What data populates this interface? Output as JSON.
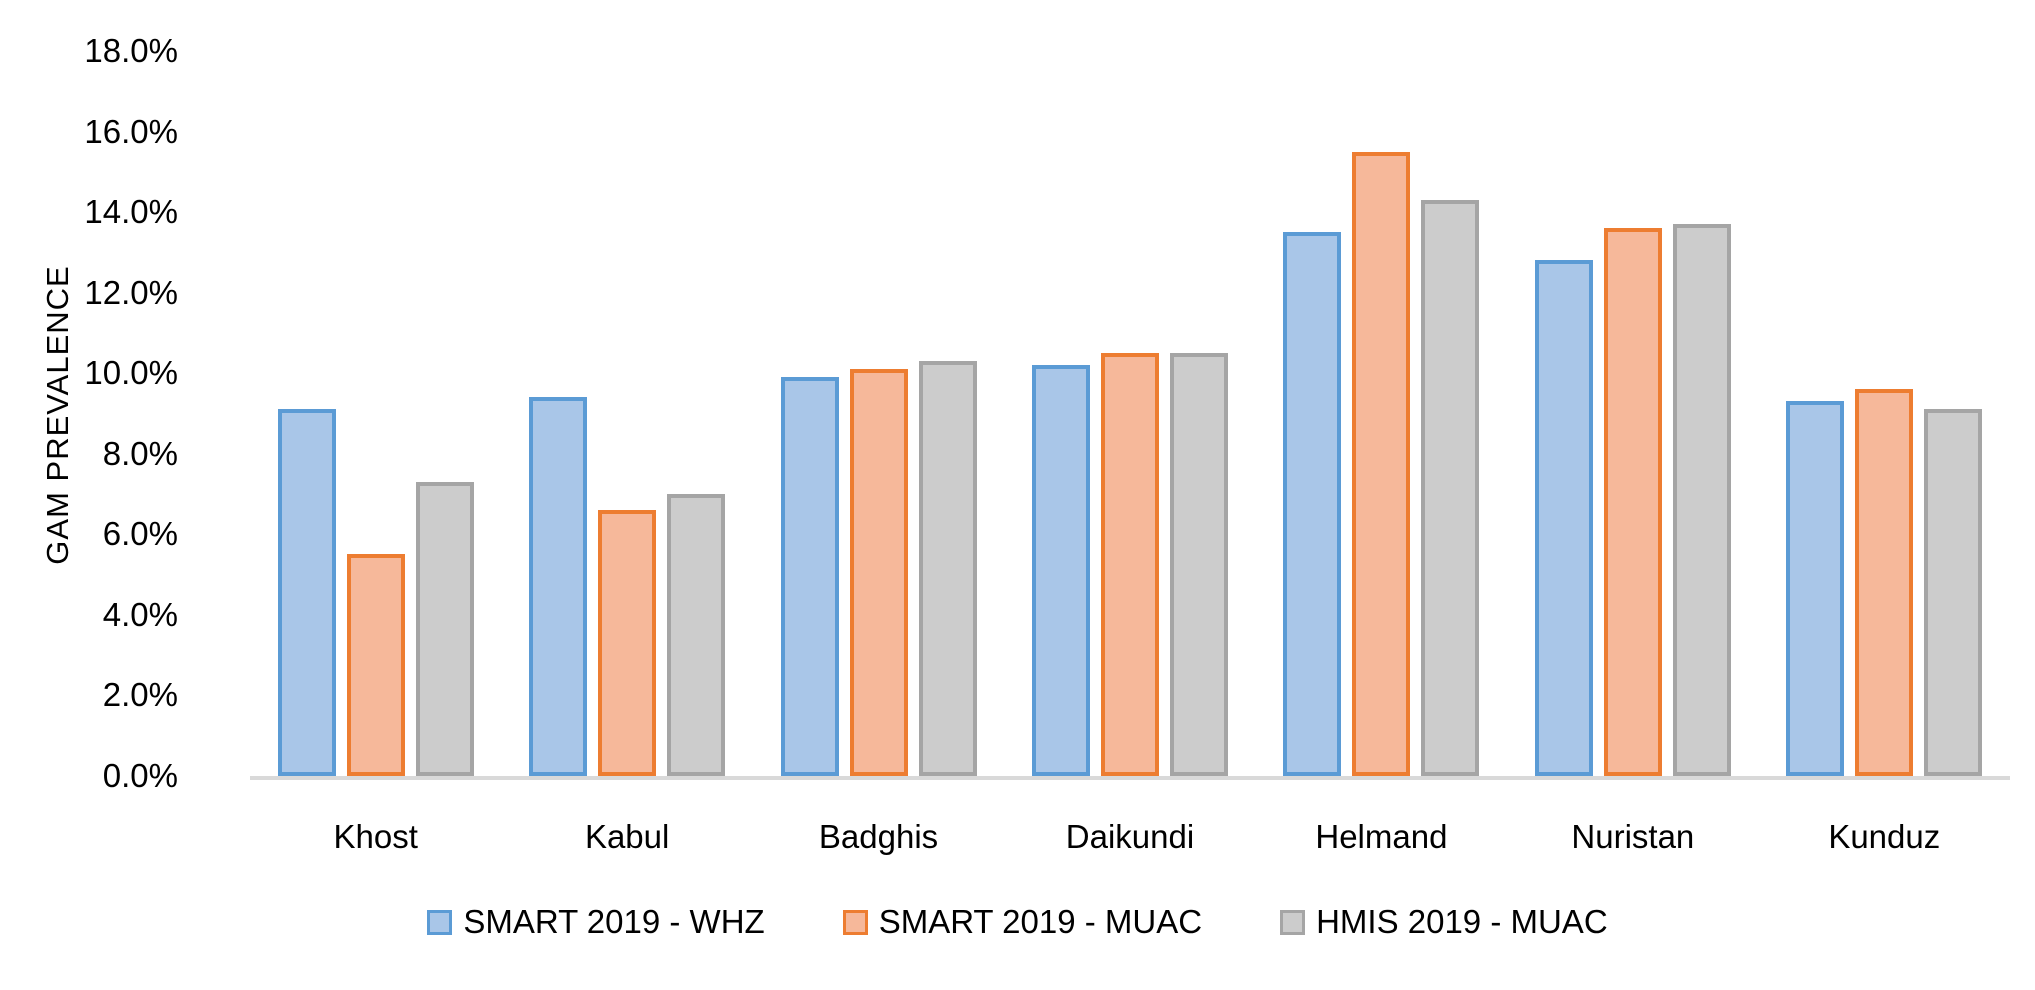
{
  "chart_data": {
    "type": "bar",
    "title": "",
    "xlabel": "",
    "ylabel": "GAM PREVALENCE",
    "value_unit": "%",
    "axis_max": 18,
    "tick_step": 2,
    "tick_decimals": 1,
    "ylim": [
      0,
      18
    ],
    "grid": false,
    "legend_position": "bottom",
    "categories": [
      "Khost",
      "Kabul",
      "Badghis",
      "Daikundi",
      "Helmand",
      "Nuristan",
      "Kunduz"
    ],
    "series": [
      {
        "name": "SMART 2019 - WHZ",
        "fill_color": "#A9C6E8",
        "border_color": "#5B9BD5",
        "values": [
          9.1,
          9.4,
          9.9,
          10.2,
          13.5,
          12.8,
          9.3
        ]
      },
      {
        "name": "SMART 2019 - MUAC",
        "fill_color": "#F6B89A",
        "border_color": "#ED7D31",
        "values": [
          5.5,
          6.6,
          10.1,
          10.5,
          15.5,
          13.6,
          9.6
        ]
      },
      {
        "name": "HMIS 2019 - MUAC",
        "fill_color": "#CCCCCC",
        "border_color": "#A5A5A5",
        "values": [
          7.3,
          7.0,
          10.3,
          10.5,
          14.3,
          13.7,
          9.1
        ]
      }
    ],
    "colors": {
      "axis_line": "#D9D9D9",
      "text": "#000000",
      "background": "#FFFFFF"
    }
  }
}
